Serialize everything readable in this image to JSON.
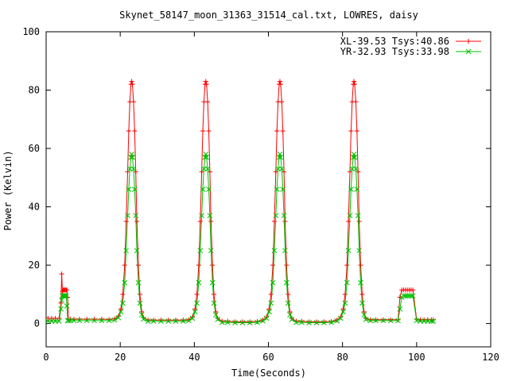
{
  "chart_data": {
    "type": "line",
    "title": "Skynet_58147_moon_31363_31514_cal.txt, LOWRES, daisy",
    "xlabel": "Time(Seconds)",
    "ylabel": "Power (Kelvin)",
    "xlim": [
      0,
      120
    ],
    "ylim": [
      -8,
      100
    ],
    "x_ticks": [
      0,
      20,
      40,
      60,
      80,
      100,
      120
    ],
    "y_ticks": [
      0,
      20,
      40,
      60,
      80,
      100
    ],
    "grid": false,
    "legend_position": "top-right",
    "series": [
      {
        "name": "XL-39.53 Tsys:40.86",
        "color": "#ff0000",
        "marker": "plus",
        "x": [
          0.5,
          1.5,
          2.5,
          3.5,
          4.0,
          4.2,
          4.4,
          4.6,
          4.8,
          5.0,
          5.2,
          5.4,
          5.6,
          5.8,
          6.0,
          6.5,
          7.5,
          9,
          11,
          13,
          15,
          17,
          18.5,
          19.5,
          20.2,
          20.7,
          21.2,
          21.6,
          22.0,
          22.3,
          22.6,
          22.9,
          23.1,
          23.3,
          23.6,
          23.9,
          24.2,
          24.5,
          24.9,
          25.3,
          25.8,
          26.3,
          27.5,
          29,
          31,
          33,
          35,
          37,
          38.5,
          39.5,
          40.2,
          40.7,
          41.2,
          41.6,
          42.0,
          42.3,
          42.6,
          42.9,
          43.1,
          43.3,
          43.6,
          43.9,
          44.2,
          44.5,
          44.9,
          45.3,
          45.8,
          46.3,
          47.5,
          49,
          51,
          53,
          55,
          57,
          58.5,
          59.5,
          60.2,
          60.7,
          61.2,
          61.6,
          62.0,
          62.3,
          62.6,
          62.9,
          63.1,
          63.3,
          63.6,
          63.9,
          64.2,
          64.5,
          64.9,
          65.3,
          65.8,
          66.3,
          67.5,
          69,
          71,
          73,
          75,
          77,
          78.5,
          79.5,
          80.2,
          80.7,
          81.2,
          81.6,
          82.0,
          82.3,
          82.6,
          82.9,
          83.1,
          83.3,
          83.6,
          83.9,
          84.2,
          84.5,
          84.9,
          85.3,
          85.8,
          86.3,
          87.5,
          89,
          91,
          93,
          95,
          95.5,
          96.0,
          96.5,
          97.0,
          97.5,
          98.0,
          98.5,
          99.0,
          100,
          101,
          102,
          103,
          104,
          104.5
        ],
        "y": [
          1.8,
          1.8,
          1.8,
          1.8,
          7,
          17,
          11,
          11.5,
          11.5,
          11.5,
          11.5,
          11.5,
          11.5,
          9,
          1.5,
          1.5,
          1.5,
          1.5,
          1.5,
          1.5,
          1.5,
          1.4,
          1.6,
          2.5,
          5,
          10,
          20,
          35,
          52,
          66,
          76,
          82,
          83,
          82,
          76,
          66,
          52,
          35,
          20,
          10,
          4,
          2,
          1.2,
          1.2,
          1.2,
          1.2,
          1.2,
          1.2,
          1.3,
          2.2,
          5,
          10,
          20,
          35,
          52,
          66,
          76,
          82,
          83,
          82,
          76,
          66,
          52,
          35,
          20,
          10,
          4,
          1.8,
          0.8,
          0.8,
          0.6,
          0.6,
          0.6,
          0.7,
          1.2,
          2.2,
          5,
          10,
          20,
          35,
          52,
          66,
          76,
          82,
          83,
          82,
          76,
          66,
          52,
          35,
          20,
          10,
          4,
          1.8,
          0.8,
          0.8,
          0.6,
          0.6,
          0.6,
          0.7,
          1.2,
          2.2,
          5,
          10,
          20,
          35,
          52,
          66,
          76,
          82,
          83,
          82,
          76,
          66,
          52,
          35,
          20,
          10,
          4,
          1.8,
          1.3,
          1.3,
          1.3,
          1.3,
          1.3,
          9,
          11.5,
          11.5,
          11.5,
          11.5,
          11.5,
          11.5,
          11.5,
          1.5,
          1.3,
          1.3,
          1.3,
          1.3,
          1.3
        ]
      },
      {
        "name": "YR-32.93 Tsys:33.98",
        "color": "#00c000",
        "marker": "cross",
        "x": [
          0.5,
          1.5,
          2.5,
          3.5,
          4.0,
          4.2,
          4.4,
          4.6,
          4.8,
          5.0,
          5.2,
          5.4,
          5.6,
          5.8,
          6.0,
          6.5,
          7.5,
          9,
          11,
          13,
          15,
          17,
          18.5,
          19.5,
          20.2,
          20.7,
          21.2,
          21.6,
          22.0,
          22.3,
          22.6,
          22.9,
          23.1,
          23.3,
          23.6,
          23.9,
          24.2,
          24.5,
          24.9,
          25.3,
          25.8,
          26.3,
          27.5,
          29,
          31,
          33,
          35,
          37,
          38.5,
          39.5,
          40.2,
          40.7,
          41.2,
          41.6,
          42.0,
          42.3,
          42.6,
          42.9,
          43.1,
          43.3,
          43.6,
          43.9,
          44.2,
          44.5,
          44.9,
          45.3,
          45.8,
          46.3,
          47.5,
          49,
          51,
          53,
          55,
          57,
          58.5,
          59.5,
          60.2,
          60.7,
          61.2,
          61.6,
          62.0,
          62.3,
          62.6,
          62.9,
          63.1,
          63.3,
          63.6,
          63.9,
          64.2,
          64.5,
          64.9,
          65.3,
          65.8,
          66.3,
          67.5,
          69,
          71,
          73,
          75,
          77,
          78.5,
          79.5,
          80.2,
          80.7,
          81.2,
          81.6,
          82.0,
          82.3,
          82.6,
          82.9,
          83.1,
          83.3,
          83.6,
          83.9,
          84.2,
          84.5,
          84.9,
          85.3,
          85.8,
          86.3,
          87.5,
          89,
          91,
          93,
          95,
          95.5,
          96.0,
          96.5,
          97.0,
          97.5,
          98.0,
          98.5,
          99.0,
          100,
          101,
          102,
          103,
          104,
          104.5
        ],
        "y": [
          0.8,
          0.8,
          0.8,
          0.8,
          5,
          8,
          9.5,
          9.5,
          9.5,
          9.5,
          9.5,
          9.5,
          6,
          1,
          1,
          1,
          1,
          1,
          1,
          1,
          1,
          1,
          1.2,
          2,
          4,
          7,
          14,
          25,
          37,
          46,
          53,
          57,
          58,
          57,
          53,
          46,
          37,
          25,
          14,
          7,
          3,
          1.5,
          0.8,
          0.8,
          0.8,
          0.8,
          0.8,
          0.8,
          1,
          1.8,
          4,
          7,
          14,
          25,
          37,
          46,
          53,
          57,
          58,
          57,
          53,
          46,
          37,
          25,
          14,
          7,
          3,
          1.4,
          0.4,
          0.4,
          0.3,
          0.3,
          0.3,
          0.4,
          0.9,
          1.8,
          4,
          7,
          14,
          25,
          37,
          46,
          53,
          57,
          58,
          57,
          53,
          46,
          37,
          25,
          14,
          7,
          3,
          1.4,
          0.4,
          0.4,
          0.3,
          0.3,
          0.3,
          0.4,
          0.9,
          1.8,
          4,
          7,
          14,
          25,
          37,
          46,
          53,
          57,
          58,
          57,
          53,
          46,
          37,
          25,
          14,
          7,
          3,
          1.4,
          1,
          1,
          1,
          1,
          1,
          5,
          9,
          9.5,
          9.5,
          9.5,
          9.5,
          9.5,
          9.5,
          1,
          0.8,
          0.8,
          0.8,
          0.8,
          0.8
        ]
      }
    ]
  }
}
